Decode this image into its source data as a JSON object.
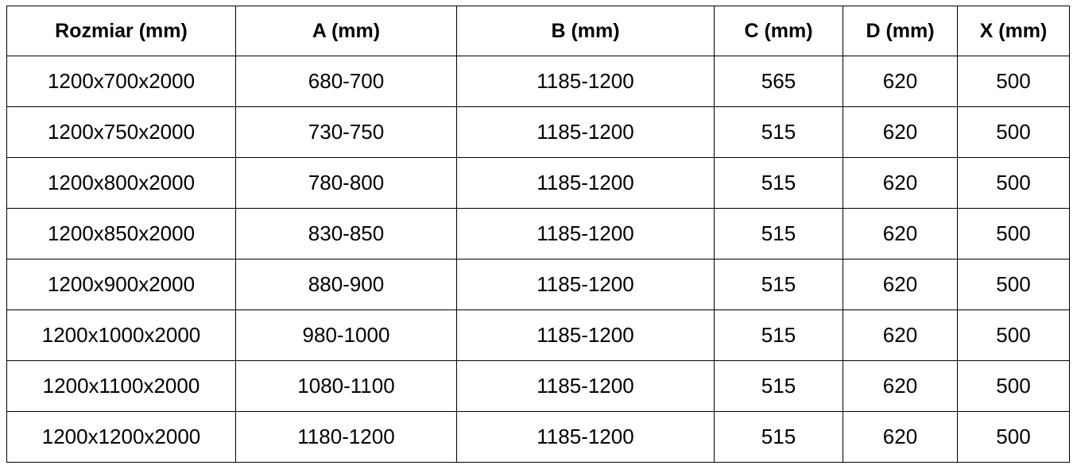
{
  "table": {
    "headers": [
      "Rozmiar (mm)",
      "A (mm)",
      "B (mm)",
      "C (mm)",
      "D (mm)",
      "X (mm)"
    ],
    "rows": [
      [
        "1200x700x2000",
        "680-700",
        "1185-1200",
        "565",
        "620",
        "500"
      ],
      [
        "1200x750x2000",
        "730-750",
        "1185-1200",
        "515",
        "620",
        "500"
      ],
      [
        "1200x800x2000",
        "780-800",
        "1185-1200",
        "515",
        "620",
        "500"
      ],
      [
        "1200x850x2000",
        "830-850",
        "1185-1200",
        "515",
        "620",
        "500"
      ],
      [
        "1200x900x2000",
        "880-900",
        "1185-1200",
        "515",
        "620",
        "500"
      ],
      [
        "1200x1000x2000",
        "980-1000",
        "1185-1200",
        "515",
        "620",
        "500"
      ],
      [
        "1200x1100x2000",
        "1080-1100",
        "1185-1200",
        "515",
        "620",
        "500"
      ],
      [
        "1200x1200x2000",
        "1180-1200",
        "1185-1200",
        "515",
        "620",
        "500"
      ]
    ]
  }
}
